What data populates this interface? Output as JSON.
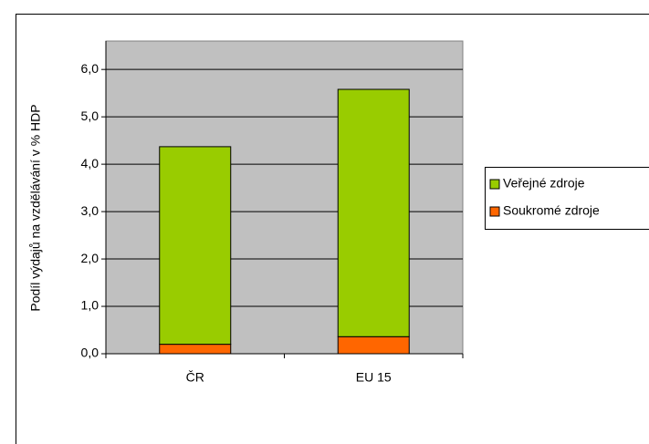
{
  "chart_data": {
    "type": "bar",
    "stacked": true,
    "y_label": "Podíl výdajů na vzdělávání v % HDP",
    "categories": [
      "ČR",
      "EU 15"
    ],
    "series": [
      {
        "name": "Veřejné zdroje",
        "color": "#99cc00",
        "values": [
          4.17,
          5.22
        ]
      },
      {
        "name": "Soukromé zdroje",
        "color": "#ff6600",
        "values": [
          0.2,
          0.36
        ]
      }
    ],
    "ylim": [
      0,
      6.6
    ],
    "yticks": [
      {
        "value": 0,
        "label": "0,0"
      },
      {
        "value": 1,
        "label": "1,0"
      },
      {
        "value": 2,
        "label": "2,0"
      },
      {
        "value": 3,
        "label": "3,0"
      },
      {
        "value": 4,
        "label": "4,0"
      },
      {
        "value": 5,
        "label": "5,0"
      },
      {
        "value": 6,
        "label": "6,0"
      }
    ],
    "grid": true,
    "legend": "right"
  }
}
